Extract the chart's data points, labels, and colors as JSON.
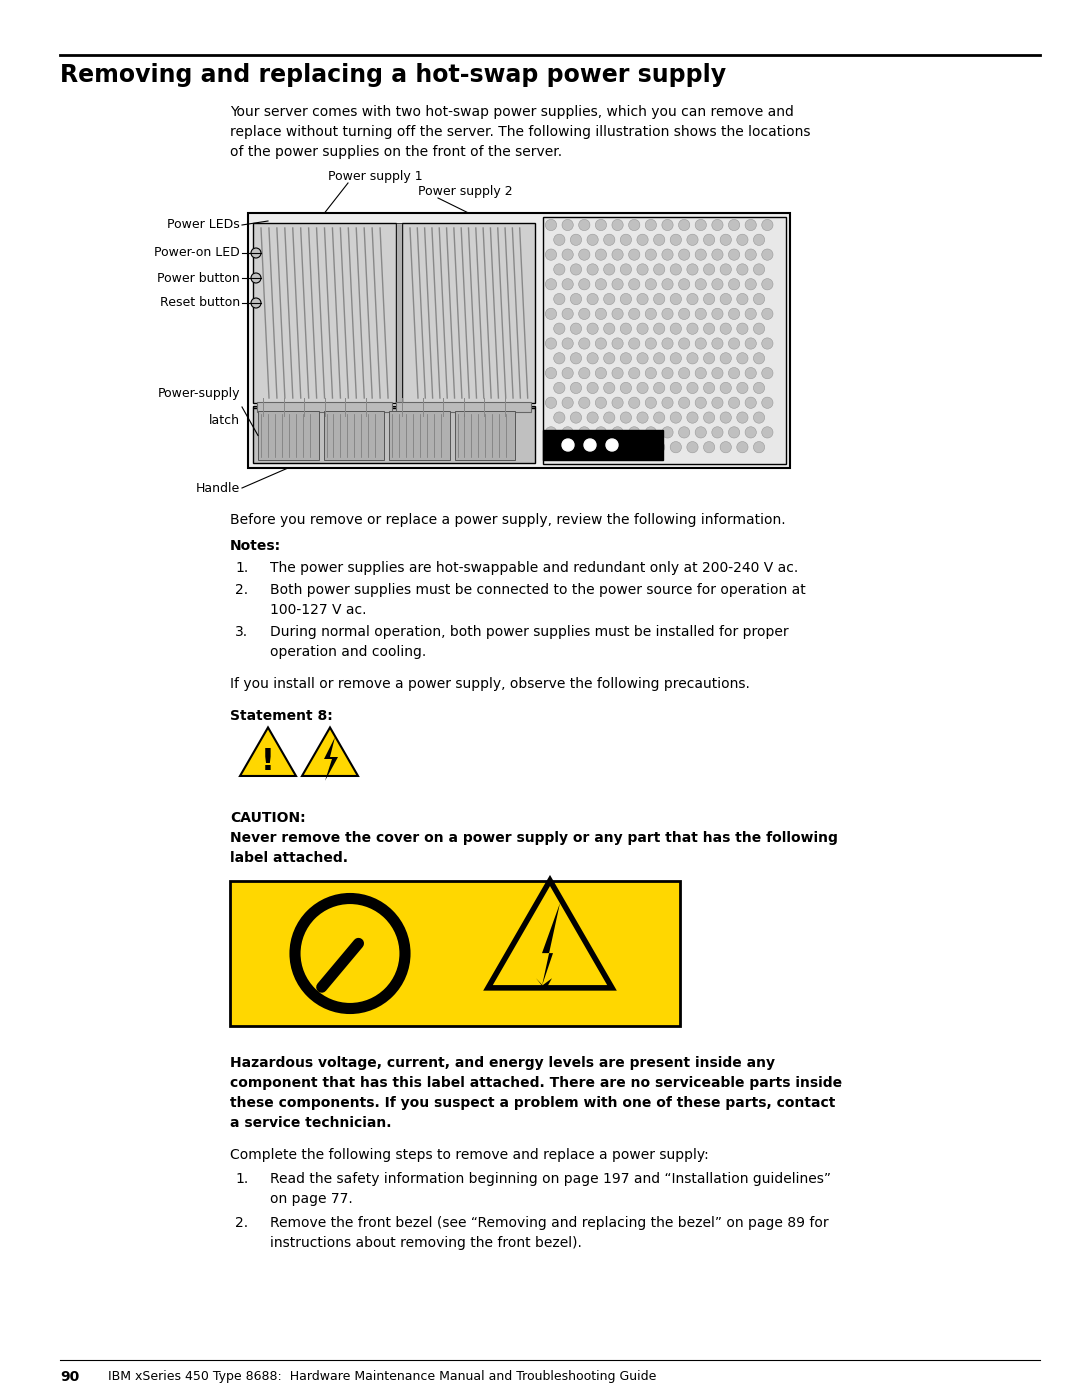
{
  "title": "Removing and replacing a hot-swap power supply",
  "bg_color": "#ffffff",
  "text_color": "#000000",
  "body_text_1a": "Your server comes with two hot-swap power supplies, which you can remove and",
  "body_text_1b": "replace without turning off the server. The following illustration shows the locations",
  "body_text_1c": "of the power supplies on the front of the server.",
  "before_notes": "Before you remove or replace a power supply, review the following information.",
  "notes_header": "Notes:",
  "note1": "The power supplies are hot-swappable and redundant only at 200-240 V ac.",
  "note2a": "Both power supplies must be connected to the power source for operation at",
  "note2b": "100-127 V ac.",
  "note3a": "During normal operation, both power supplies must be installed for proper",
  "note3b": "operation and cooling.",
  "precaution_text": "If you install or remove a power supply, observe the following precautions.",
  "statement_label": "Statement 8:",
  "caution_label": "CAUTION:",
  "caution_line1": "Never remove the cover on a power supply or any part that has the following",
  "caution_line2": "label attached.",
  "hazard_line1": "Hazardous voltage, current, and energy levels are present inside any",
  "hazard_line2": "component that has this label attached. There are no serviceable parts inside",
  "hazard_line3": "these components. If you suspect a problem with one of these parts, contact",
  "hazard_line4": "a service technician.",
  "complete_steps_text": "Complete the following steps to remove and replace a power supply:",
  "step1a": "Read the safety information beginning on page 197 and “Installation guidelines”",
  "step1b": "on page 77.",
  "step2a": "Remove the front bezel (see “Removing and replacing the bezel” on page 89 for",
  "step2b": "instructions about removing the front bezel).",
  "footer_page": "90",
  "footer_text": "IBM xSeries 450 Type 8688:  Hardware Maintenance Manual and Troubleshooting Guide",
  "yellow_color": "#FFD700",
  "black_color": "#000000",
  "white_color": "#ffffff"
}
